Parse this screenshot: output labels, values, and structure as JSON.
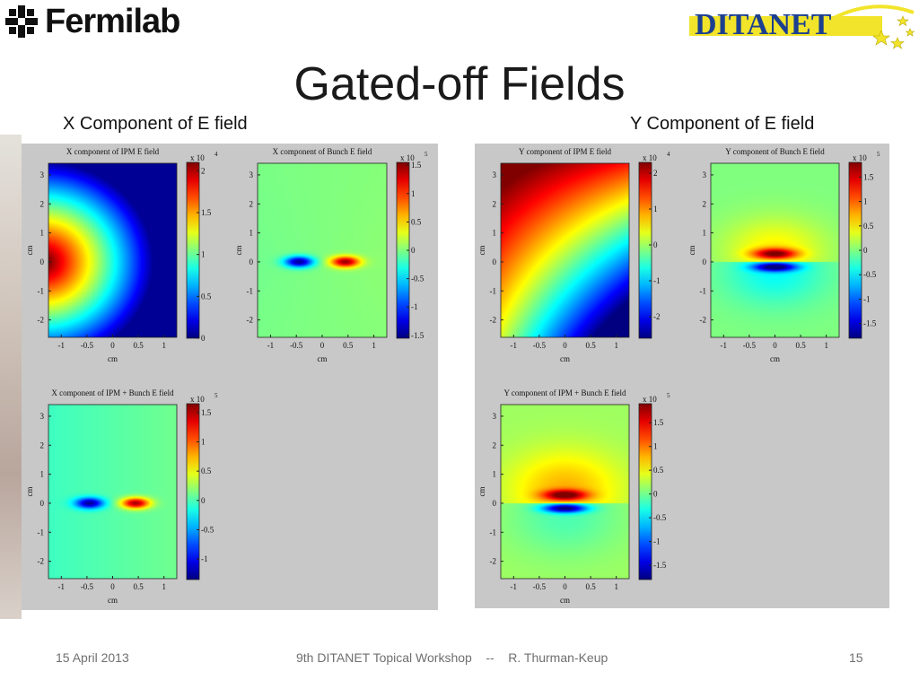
{
  "header": {
    "fermilab_logo_text": "Fermilab",
    "ditanet_logo_text": "DITANET",
    "title": "Gated-off Fields"
  },
  "columns": {
    "left_label": "X Component of E field",
    "right_label": "Y Component of E field"
  },
  "colors": {
    "ditanet_text": "#1c3f8f",
    "ditanet_band": "#f2e42a",
    "panel_bg": "#c8c8c8"
  },
  "chart_data": [
    {
      "type": "heatmap",
      "title": "X component of IPM E field",
      "xlabel": "cm",
      "ylabel": "cm",
      "xlim": [
        -1.25,
        1.25
      ],
      "ylim": [
        -2.6,
        3.4
      ],
      "x_ticks": [
        -1,
        -0.5,
        0,
        0.5,
        1
      ],
      "y_ticks": [
        -2,
        -1,
        0,
        1,
        2,
        3
      ],
      "colorbar": {
        "multiplier": "x 10",
        "exponent": "4",
        "range": [
          0,
          2.1
        ],
        "ticks": [
          0,
          0.5,
          1,
          1.5,
          2
        ]
      }
    },
    {
      "type": "heatmap",
      "title": "X component of Bunch E field",
      "xlabel": "cm",
      "ylabel": "cm",
      "xlim": [
        -1.25,
        1.25
      ],
      "ylim": [
        -2.6,
        3.4
      ],
      "x_ticks": [
        -1,
        -0.5,
        0,
        0.5,
        1
      ],
      "y_ticks": [
        -2,
        -1,
        0,
        1,
        2,
        3
      ],
      "colorbar": {
        "multiplier": "x 10",
        "exponent": "5",
        "range": [
          -1.55,
          1.55
        ],
        "ticks": [
          -1.5,
          -1,
          -0.5,
          0,
          0.5,
          1,
          1.5
        ]
      }
    },
    {
      "type": "heatmap",
      "title": "X component of IPM + Bunch E field",
      "xlabel": "cm",
      "ylabel": "cm",
      "xlim": [
        -1.25,
        1.25
      ],
      "ylim": [
        -2.6,
        3.4
      ],
      "x_ticks": [
        -1,
        -0.5,
        0,
        0.5,
        1
      ],
      "y_ticks": [
        -2,
        -1,
        0,
        1,
        2,
        3
      ],
      "colorbar": {
        "multiplier": "x 10",
        "exponent": "5",
        "range": [
          -1.35,
          1.65
        ],
        "ticks": [
          -1,
          -0.5,
          0,
          0.5,
          1,
          1.5
        ]
      }
    },
    {
      "type": "heatmap",
      "title": "Y component of IPM E field",
      "xlabel": "cm",
      "ylabel": "cm",
      "xlim": [
        -1.25,
        1.25
      ],
      "ylim": [
        -2.6,
        3.4
      ],
      "x_ticks": [
        -1,
        -0.5,
        0,
        0.5,
        1
      ],
      "y_ticks": [
        -2,
        -1,
        0,
        1,
        2,
        3
      ],
      "colorbar": {
        "multiplier": "x 10",
        "exponent": "4",
        "range": [
          -2.6,
          2.3
        ],
        "ticks": [
          -2,
          -1,
          0,
          1,
          2
        ]
      }
    },
    {
      "type": "heatmap",
      "title": "Y component of Bunch E field",
      "xlabel": "cm",
      "ylabel": "cm",
      "xlim": [
        -1.25,
        1.25
      ],
      "ylim": [
        -2.6,
        3.4
      ],
      "x_ticks": [
        -1,
        -0.5,
        0,
        0.5,
        1
      ],
      "y_ticks": [
        -2,
        -1,
        0,
        1,
        2,
        3
      ],
      "colorbar": {
        "multiplier": "x 10",
        "exponent": "5",
        "range": [
          -1.8,
          1.8
        ],
        "ticks": [
          -1.5,
          -1,
          -0.5,
          0,
          0.5,
          1,
          1.5
        ]
      }
    },
    {
      "type": "heatmap",
      "title": "Y component of IPM + Bunch E field",
      "xlabel": "cm",
      "ylabel": "cm",
      "xlim": [
        -1.25,
        1.25
      ],
      "ylim": [
        -2.6,
        3.4
      ],
      "x_ticks": [
        -1,
        -0.5,
        0,
        0.5,
        1
      ],
      "y_ticks": [
        -2,
        -1,
        0,
        1,
        2,
        3
      ],
      "colorbar": {
        "multiplier": "x 10",
        "exponent": "5",
        "range": [
          -1.8,
          1.9
        ],
        "ticks": [
          -1.5,
          -1,
          -0.5,
          0,
          0.5,
          1,
          1.5
        ]
      }
    }
  ],
  "footer": {
    "date": "15 April 2013",
    "event": "9th DITANET Topical Workshop    --    R. Thurman-Keup",
    "page_number": "15"
  }
}
